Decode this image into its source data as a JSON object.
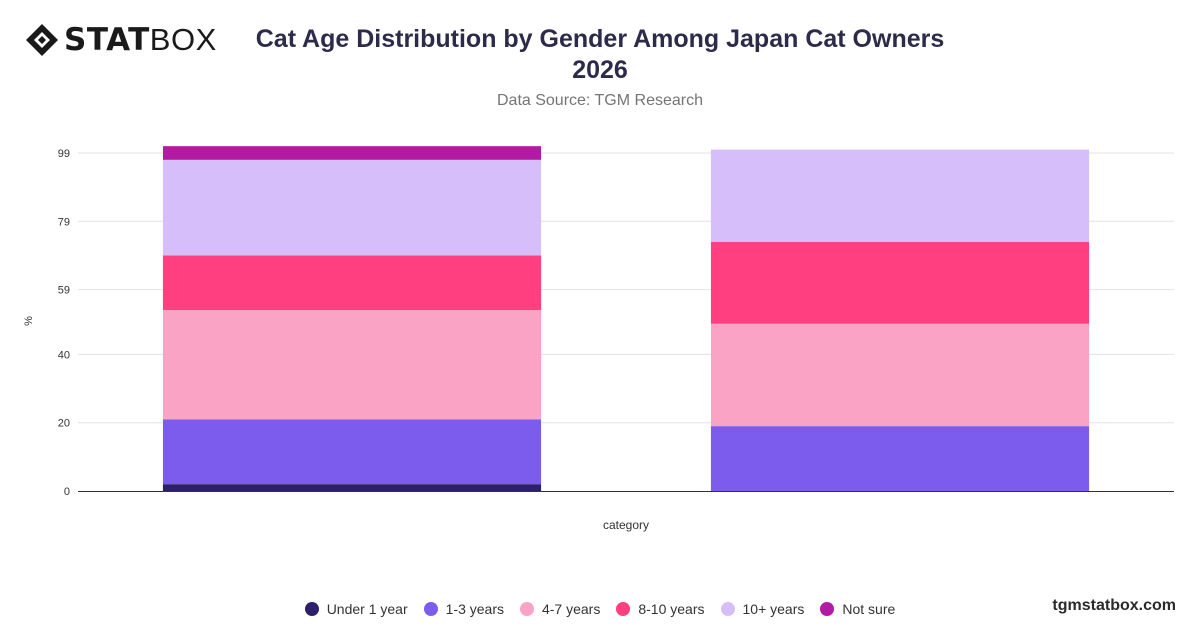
{
  "brand": {
    "logo_bold": "STAT",
    "logo_light": "BOX",
    "website": "tgmstatbox.com",
    "logo_icon": "statbox-diamond-icon"
  },
  "title": "Cat Age Distribution by Gender Among Japan Cat Owners 2026",
  "subtitle": "Data Source: TGM Research",
  "chart_data": {
    "type": "bar",
    "stacked": true,
    "categories": [
      "",
      ""
    ],
    "xlabel": "category",
    "ylabel": "%",
    "y_ticks": [
      0,
      20,
      40,
      59,
      79,
      99
    ],
    "ylim": [
      0,
      99
    ],
    "grid": true,
    "legend_position": "bottom",
    "series": [
      {
        "name": "Under 1 year",
        "color": "#2e1f6b",
        "values": [
          2,
          0
        ]
      },
      {
        "name": "1-3 years",
        "color": "#7b5cec",
        "values": [
          19,
          19
        ]
      },
      {
        "name": "4-7 years",
        "color": "#fba3c4",
        "values": [
          32,
          30
        ]
      },
      {
        "name": "8-10 years",
        "color": "#ff3f7f",
        "values": [
          16,
          24
        ]
      },
      {
        "name": "10+ years",
        "color": "#d5befa",
        "values": [
          28,
          27
        ]
      },
      {
        "name": "Not sure",
        "color": "#b21aa3",
        "values": [
          4,
          0
        ]
      }
    ]
  }
}
